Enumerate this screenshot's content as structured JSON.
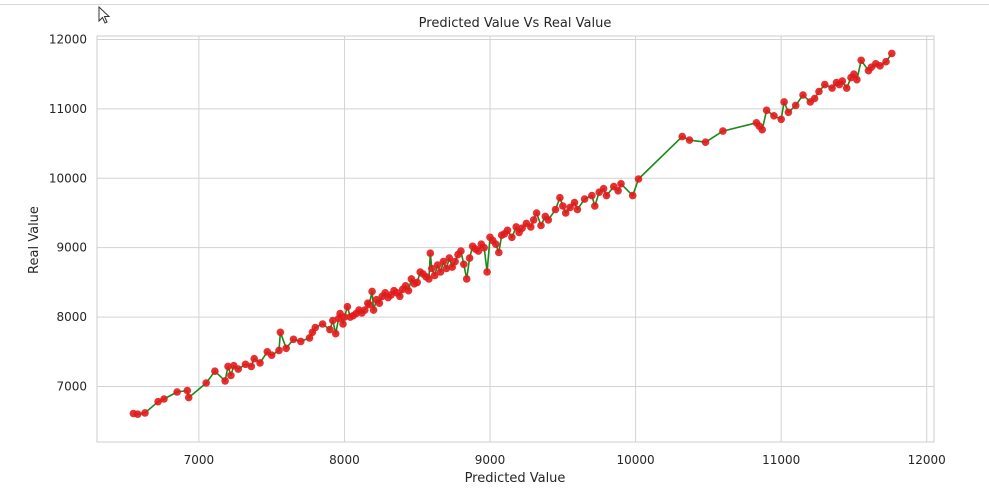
{
  "chart_data": {
    "type": "scatter",
    "title": "Predicted Value Vs Real Value",
    "xlabel": "Predicted Value",
    "ylabel": "Real Value",
    "xlim": [
      6300,
      12050
    ],
    "ylim": [
      6200,
      12050
    ],
    "xticks": [
      7000,
      8000,
      9000,
      10000,
      11000,
      12000
    ],
    "yticks": [
      7000,
      8000,
      9000,
      10000,
      11000,
      12000
    ],
    "grid": true,
    "colors": {
      "points": "#e31a1c",
      "line": "#1a8a1a",
      "grid": "#d3d3d3",
      "frame": "#cccccc"
    },
    "series": [
      {
        "x": [
          6550,
          6580,
          6630,
          6720,
          6760,
          6850,
          6920,
          6930,
          7050,
          7110,
          7180,
          7200,
          7220,
          7240,
          7270,
          7320,
          7360,
          7380,
          7420,
          7470,
          7500,
          7550,
          7560,
          7600,
          7650,
          7700,
          7760,
          7780,
          7800,
          7850,
          7900,
          7920,
          7940,
          7960,
          7970,
          7990,
          8000,
          8020,
          8040,
          8060,
          8080,
          8100,
          8120,
          8140,
          8160,
          8170,
          8190,
          8200,
          8220,
          8240,
          8260,
          8280,
          8300,
          8320,
          8340,
          8360,
          8380,
          8400,
          8420,
          8440,
          8460,
          8480,
          8500,
          8520,
          8540,
          8560,
          8580,
          8590,
          8600,
          8620,
          8640,
          8660,
          8680,
          8700,
          8720,
          8740,
          8760,
          8780,
          8800,
          8820,
          8840,
          8860,
          8880,
          8900,
          8920,
          8940,
          8960,
          8980,
          9000,
          9020,
          9040,
          9060,
          9080,
          9100,
          9120,
          9150,
          9180,
          9200,
          9220,
          9250,
          9280,
          9300,
          9320,
          9350,
          9380,
          9400,
          9450,
          9480,
          9500,
          9520,
          9550,
          9580,
          9600,
          9650,
          9700,
          9720,
          9750,
          9780,
          9800,
          9850,
          9880,
          9900,
          9980,
          10020,
          10320,
          10370,
          10480,
          10600,
          10830,
          10850,
          10870,
          10900,
          10950,
          11000,
          11020,
          11050,
          11100,
          11150,
          11200,
          11230,
          11260,
          11300,
          11350,
          11380,
          11400,
          11420,
          11450,
          11480,
          11500,
          11520,
          11550,
          11600,
          11620,
          11650,
          11680,
          11720,
          11760
        ],
        "y": [
          6610,
          6600,
          6620,
          6780,
          6820,
          6920,
          6940,
          6840,
          7050,
          7220,
          7080,
          7290,
          7160,
          7300,
          7250,
          7320,
          7290,
          7400,
          7340,
          7500,
          7450,
          7520,
          7780,
          7550,
          7680,
          7650,
          7700,
          7780,
          7850,
          7900,
          7820,
          7950,
          7760,
          7980,
          8050,
          7900,
          8000,
          8150,
          8000,
          8020,
          8050,
          8100,
          8060,
          8100,
          8200,
          8180,
          8370,
          8100,
          8250,
          8200,
          8300,
          8350,
          8280,
          8320,
          8380,
          8350,
          8300,
          8400,
          8450,
          8380,
          8550,
          8480,
          8500,
          8650,
          8620,
          8580,
          8550,
          8920,
          8700,
          8600,
          8750,
          8650,
          8800,
          8700,
          8850,
          8720,
          8800,
          8900,
          8950,
          8760,
          8550,
          8850,
          9020,
          8980,
          8950,
          9050,
          9000,
          8650,
          9150,
          9100,
          9050,
          8930,
          9180,
          9200,
          9250,
          9150,
          9300,
          9220,
          9280,
          9350,
          9300,
          9400,
          9500,
          9320,
          9450,
          9400,
          9550,
          9720,
          9600,
          9500,
          9580,
          9650,
          9550,
          9700,
          9750,
          9600,
          9800,
          9850,
          9750,
          9880,
          9820,
          9920,
          9750,
          9990,
          10600,
          10550,
          10520,
          10680,
          10800,
          10750,
          10700,
          10980,
          10900,
          10850,
          11100,
          10950,
          11050,
          11200,
          11100,
          11150,
          11250,
          11350,
          11300,
          11380,
          11350,
          11400,
          11300,
          11450,
          11500,
          11420,
          11700,
          11550,
          11600,
          11650,
          11620,
          11680,
          11800
        ]
      }
    ]
  }
}
